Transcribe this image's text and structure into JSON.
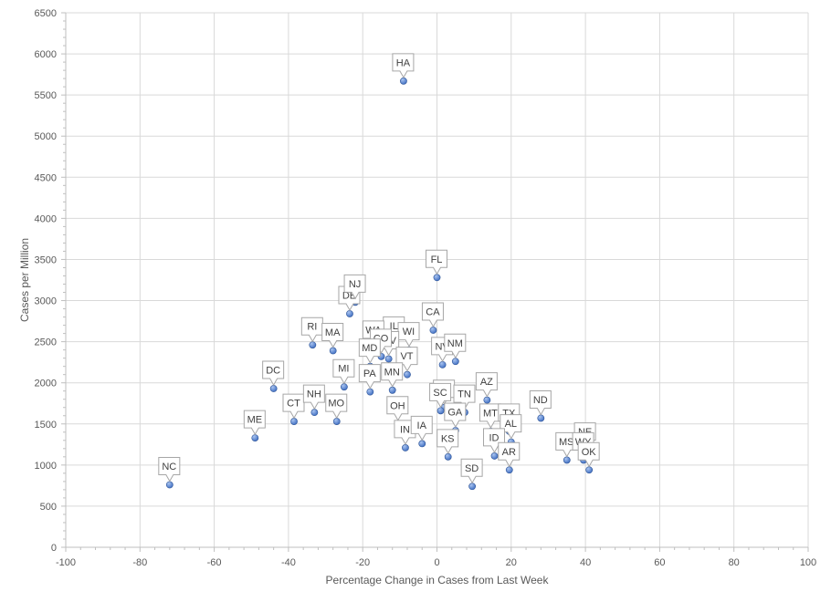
{
  "chart_data": {
    "type": "scatter",
    "xlabel": "Percentage Change  in Cases from Last Week",
    "ylabel": "Cases per Million",
    "xlim": [
      -100,
      100
    ],
    "ylim": [
      0,
      6500
    ],
    "x_ticks": [
      -100,
      -80,
      -60,
      -40,
      -20,
      0,
      20,
      40,
      60,
      80,
      100
    ],
    "y_ticks": [
      0,
      500,
      1000,
      1500,
      2000,
      2500,
      3000,
      3500,
      4000,
      4500,
      5000,
      5500,
      6000,
      6500
    ],
    "x_tick_labels": [
      "-100",
      "-80",
      "-60",
      "-40",
      "-20",
      "0",
      "20",
      "40",
      "60",
      "80",
      "100"
    ],
    "y_tick_labels": [
      "0",
      "500",
      "1000",
      "1500",
      "2000",
      "2500",
      "3000",
      "3500",
      "4000",
      "4500",
      "5000",
      "5500",
      "6000",
      "6500"
    ],
    "grid": true,
    "marker_color": "#4472c4",
    "points": [
      {
        "label": "HA",
        "x": -9,
        "y": 5670
      },
      {
        "label": "FL",
        "x": 0,
        "y": 3280
      },
      {
        "label": "DE",
        "x": -23.5,
        "y": 2840
      },
      {
        "label": "NJ",
        "x": -22,
        "y": 2980
      },
      {
        "label": "CA",
        "x": -1,
        "y": 2640
      },
      {
        "label": "RI",
        "x": -33.5,
        "y": 2460
      },
      {
        "label": "MA",
        "x": -28,
        "y": 2390
      },
      {
        "label": "IL",
        "x": -11.5,
        "y": 2470
      },
      {
        "label": "WA",
        "x": -17,
        "y": 2420
      },
      {
        "label": "WI",
        "x": -7.5,
        "y": 2400
      },
      {
        "label": "WV",
        "x": -13,
        "y": 2290
      },
      {
        "label": "CO",
        "x": -15,
        "y": 2320
      },
      {
        "label": "MD",
        "x": -18,
        "y": 2200
      },
      {
        "label": "VT",
        "x": -8,
        "y": 2100
      },
      {
        "label": "NV",
        "x": 1.5,
        "y": 2220
      },
      {
        "label": "NM",
        "x": 5,
        "y": 2260
      },
      {
        "label": "DC",
        "x": -44,
        "y": 1930
      },
      {
        "label": "MI",
        "x": -25,
        "y": 1950
      },
      {
        "label": "PA",
        "x": -18,
        "y": 1890
      },
      {
        "label": "MN",
        "x": -12,
        "y": 1910
      },
      {
        "label": "AZ",
        "x": 13.5,
        "y": 1790
      },
      {
        "label": "UT",
        "x": 2,
        "y": 1700
      },
      {
        "label": "SC",
        "x": 1,
        "y": 1660
      },
      {
        "label": "TN",
        "x": 7.5,
        "y": 1640
      },
      {
        "label": "CT",
        "x": -38.5,
        "y": 1530
      },
      {
        "label": "NH",
        "x": -33,
        "y": 1640
      },
      {
        "label": "MO",
        "x": -27,
        "y": 1530
      },
      {
        "label": "OH",
        "x": -10.5,
        "y": 1500
      },
      {
        "label": "GA",
        "x": 5,
        "y": 1420
      },
      {
        "label": "MT",
        "x": 14.5,
        "y": 1410
      },
      {
        "label": "TX",
        "x": 19.5,
        "y": 1410
      },
      {
        "label": "AL",
        "x": 20,
        "y": 1280
      },
      {
        "label": "ND",
        "x": 28,
        "y": 1570
      },
      {
        "label": "ME",
        "x": -49,
        "y": 1330
      },
      {
        "label": "IN",
        "x": -8.5,
        "y": 1210
      },
      {
        "label": "IA",
        "x": -4,
        "y": 1260
      },
      {
        "label": "KS",
        "x": 3,
        "y": 1100
      },
      {
        "label": "ID",
        "x": 15.5,
        "y": 1110
      },
      {
        "label": "AR",
        "x": 19.5,
        "y": 940
      },
      {
        "label": "MS",
        "x": 35,
        "y": 1060
      },
      {
        "label": "NE",
        "x": 40,
        "y": 1180
      },
      {
        "label": "WY",
        "x": 39.5,
        "y": 1060
      },
      {
        "label": "OK",
        "x": 41,
        "y": 940
      },
      {
        "label": "NC",
        "x": -72,
        "y": 760
      },
      {
        "label": "SD",
        "x": 9.5,
        "y": 740
      }
    ]
  }
}
